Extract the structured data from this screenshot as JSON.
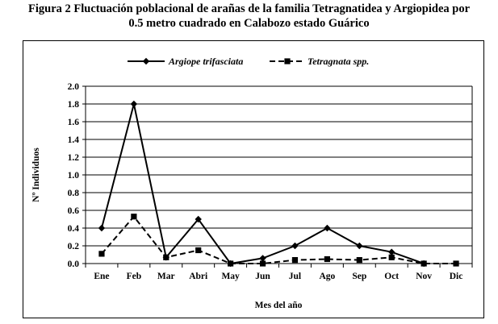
{
  "figure": {
    "title_line1": "Figura 2 Fluctuación poblacional de arañas de la familia Tetragnatidea y Argiopidea por",
    "title_line2": "0.5 metro cuadrado en Calabozo estado Guárico"
  },
  "chart_data": {
    "type": "line",
    "categories": [
      "Ene",
      "Feb",
      "Mar",
      "Abri",
      "May",
      "Jun",
      "Jul",
      "Ago",
      "Sep",
      "Oct",
      "Nov",
      "Dic"
    ],
    "series": [
      {
        "name": "Argiope trifasciata",
        "values": [
          0.4,
          1.8,
          0.07,
          0.5,
          0.0,
          0.06,
          0.2,
          0.4,
          0.2,
          0.13,
          0.0,
          null
        ],
        "line_style": "solid",
        "marker": "diamond",
        "color": "#000000"
      },
      {
        "name": "Tetragnata spp.",
        "values": [
          0.11,
          0.53,
          0.07,
          0.15,
          0.0,
          0.0,
          0.04,
          0.05,
          0.04,
          0.07,
          0.0,
          0.0
        ],
        "line_style": "dashed",
        "marker": "square",
        "color": "#000000"
      }
    ],
    "xlabel": "Mes del  año",
    "ylabel": "Nº Individuos",
    "ylim": [
      0,
      2.0
    ],
    "yticks": [
      "0.0",
      "0.2",
      "0.4",
      "0.6",
      "0.8",
      "1.0",
      "1.2",
      "1.4",
      "1.6",
      "1.8",
      "2.0"
    ],
    "grid": "horizontal",
    "legend_position": "top-center"
  }
}
